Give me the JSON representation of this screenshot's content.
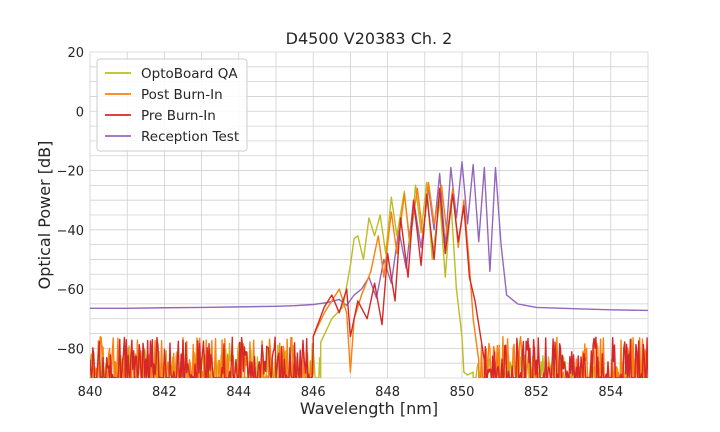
{
  "chart_data": {
    "type": "line",
    "title": "D4500 V20383 Ch. 2",
    "xlabel": "Wavelength [nm]",
    "ylabel": "Optical Power [dB]",
    "xlim": [
      840,
      855
    ],
    "ylim": [
      -90,
      20
    ],
    "xticks": [
      840,
      842,
      844,
      846,
      848,
      850,
      852,
      854
    ],
    "yticks": [
      -80,
      -60,
      -40,
      -20,
      0,
      20
    ],
    "xtick_labels": [
      "840",
      "842",
      "844",
      "846",
      "848",
      "850",
      "852",
      "854"
    ],
    "ytick_labels": [
      "−80",
      "−60",
      "−40",
      "−20",
      "0",
      "20"
    ],
    "grid": true,
    "legend_position": "top-left",
    "series": [
      {
        "name": "OptoBoard QA",
        "color": "#bcbd22",
        "noise_floor": {
          "x_start": 840,
          "x_end": 846.2,
          "min": -90,
          "max": -78
        },
        "x": [
          846.2,
          846.5,
          846.8,
          847.0,
          847.1,
          847.2,
          847.35,
          847.5,
          847.65,
          847.8,
          847.95,
          848.1,
          848.25,
          848.45,
          848.6,
          848.75,
          848.9,
          849.05,
          849.2,
          849.4,
          849.55,
          849.7,
          849.85,
          850.0,
          850.05,
          850.15,
          850.3
        ],
        "y": [
          -78,
          -70,
          -66,
          -52,
          -43,
          -42,
          -50,
          -36,
          -42,
          -35,
          -48,
          -29,
          -42,
          -27,
          -46,
          -25,
          -41,
          -24,
          -50,
          -30,
          -56,
          -30,
          -60,
          -76,
          -88,
          -89,
          -88
        ],
        "noise_floor_after": {
          "x_start": 850.3,
          "x_end": 855,
          "min": -90,
          "max": -82
        }
      },
      {
        "name": "Post Burn-In",
        "color": "#ff7f0e",
        "noise_floor": {
          "x_start": 840,
          "x_end": 846.0,
          "min": -90,
          "max": -76
        },
        "x": [
          846.0,
          846.3,
          846.5,
          846.7,
          846.9,
          847.0,
          847.1,
          847.3,
          847.55,
          847.75,
          847.9,
          848.1,
          848.25,
          848.45,
          848.6,
          848.8,
          848.95,
          849.1,
          849.25,
          849.45,
          849.6,
          849.75,
          849.9,
          850.05,
          850.2,
          850.3,
          850.45
        ],
        "y": [
          -76,
          -68,
          -64,
          -60,
          -68,
          -88,
          -70,
          -62,
          -54,
          -42,
          -56,
          -34,
          -48,
          -28,
          -44,
          -26,
          -42,
          -24,
          -38,
          -25,
          -42,
          -26,
          -46,
          -30,
          -52,
          -70,
          -84
        ],
        "noise_floor_after": {
          "x_start": 850.45,
          "x_end": 855,
          "min": -90,
          "max": -76
        }
      },
      {
        "name": "Pre Burn-In",
        "color": "#d62728",
        "noise_floor": {
          "x_start": 840,
          "x_end": 846.0,
          "min": -90,
          "max": -76
        },
        "x": [
          846.0,
          846.3,
          846.5,
          846.7,
          846.9,
          847.0,
          847.2,
          847.45,
          847.65,
          847.85,
          848.0,
          848.2,
          848.35,
          848.55,
          848.7,
          848.9,
          849.05,
          849.25,
          849.4,
          849.55,
          849.75,
          849.9,
          850.05,
          850.2,
          850.35,
          850.5,
          850.6
        ],
        "y": [
          -76,
          -66,
          -62,
          -68,
          -60,
          -76,
          -64,
          -70,
          -58,
          -72,
          -48,
          -64,
          -36,
          -56,
          -30,
          -52,
          -28,
          -50,
          -26,
          -48,
          -28,
          -44,
          -32,
          -56,
          -64,
          -76,
          -84
        ],
        "noise_floor_after": {
          "x_start": 850.6,
          "x_end": 855,
          "min": -90,
          "max": -76
        }
      },
      {
        "name": "Reception Test",
        "color": "#9467bd",
        "x": [
          840,
          841,
          842,
          843,
          844,
          845,
          845.5,
          846.0,
          846.4,
          846.7,
          846.9,
          847.1,
          847.3,
          847.5,
          847.7,
          847.9,
          848.1,
          848.3,
          848.5,
          848.7,
          848.9,
          849.1,
          849.25,
          849.4,
          849.55,
          849.7,
          849.85,
          850.0,
          850.15,
          850.3,
          850.45,
          850.6,
          850.75,
          850.9,
          851.05,
          851.2,
          851.5,
          852,
          853,
          854,
          855
        ],
        "y": [
          -66.5,
          -66.5,
          -66.3,
          -66.2,
          -66.0,
          -65.8,
          -65.6,
          -65.2,
          -64.5,
          -63.5,
          -65.5,
          -62,
          -60,
          -56,
          -63,
          -50,
          -58,
          -40,
          -53,
          -30,
          -46,
          -26,
          -40,
          -21,
          -46,
          -19,
          -36,
          -17,
          -38,
          -18,
          -44,
          -19,
          -54,
          -19,
          -45,
          -62,
          -65,
          -66.2,
          -66.6,
          -67.0,
          -67.2
        ]
      }
    ]
  }
}
